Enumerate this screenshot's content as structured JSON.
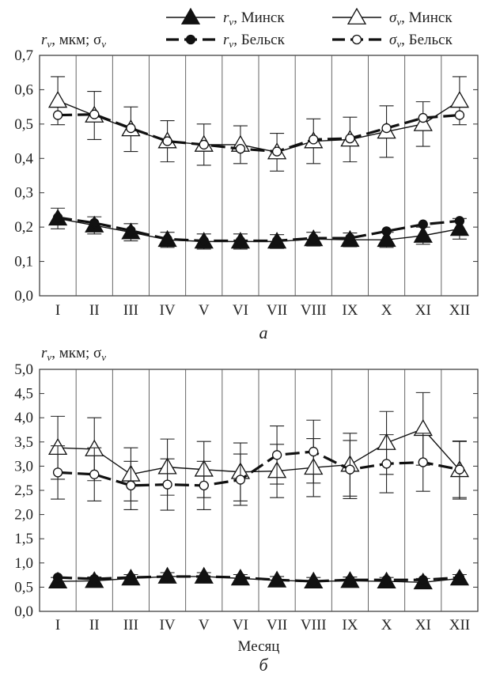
{
  "legend": [
    {
      "var": "r",
      "sub": "v",
      "sep": ", ",
      "city": "Минск",
      "line": "solid",
      "marker": "triangle-filled"
    },
    {
      "var": "σ",
      "sub": "v",
      "sep": ", ",
      "city": "Минск",
      "line": "solid",
      "marker": "triangle-open"
    },
    {
      "var": "r",
      "sub": "v",
      "sep": ", ",
      "city": "Бельск",
      "line": "dashed",
      "marker": "circle-filled"
    },
    {
      "var": "σ",
      "sub": "v",
      "sep": ", ",
      "city": "Бельск",
      "line": "dashed",
      "marker": "circle-open"
    }
  ],
  "chart_data": [
    {
      "type": "line",
      "panel_label": "а",
      "ylabel": {
        "v1": "r",
        "s1": "v",
        "mid": ", мкм; ",
        "v2": "σ",
        "s2": "v"
      },
      "xlabel": "",
      "ylim": [
        0,
        0.7
      ],
      "yticks": [
        "0,0",
        "0,1",
        "0,2",
        "0,3",
        "0,4",
        "0,5",
        "0,6",
        "0,7"
      ],
      "categories": [
        "I",
        "II",
        "III",
        "IV",
        "V",
        "VI",
        "VII",
        "VIII",
        "IX",
        "X",
        "XI",
        "XII"
      ],
      "grid": "vertical",
      "series": [
        {
          "name": "σv, Минск",
          "line": "solid",
          "marker": "triangle-open",
          "values": [
            0.568,
            0.525,
            0.485,
            0.45,
            0.44,
            0.44,
            0.418,
            0.45,
            0.455,
            0.478,
            0.5,
            0.568
          ],
          "err": [
            0.07,
            0.07,
            0.065,
            0.06,
            0.06,
            0.055,
            0.055,
            0.065,
            0.065,
            0.075,
            0.065,
            0.07
          ]
        },
        {
          "name": "σv, Бельск",
          "line": "dashed",
          "marker": "circle-open",
          "values": [
            0.526,
            0.528,
            0.488,
            0.45,
            0.44,
            0.428,
            0.42,
            0.455,
            0.458,
            0.488,
            0.518,
            0.526
          ],
          "err": [
            0.0,
            0.0,
            0.0,
            0.0,
            0.0,
            0.0,
            0.0,
            0.0,
            0.0,
            0.0,
            0.0,
            0.0
          ]
        },
        {
          "name": "rv, Минск",
          "line": "solid",
          "marker": "triangle-filled",
          "values": [
            0.225,
            0.205,
            0.185,
            0.163,
            0.158,
            0.158,
            0.158,
            0.165,
            0.163,
            0.163,
            0.175,
            0.195
          ],
          "err": [
            0.03,
            0.025,
            0.025,
            0.022,
            0.022,
            0.022,
            0.02,
            0.02,
            0.02,
            0.022,
            0.025,
            0.03
          ]
        },
        {
          "name": "rv, Бельск",
          "line": "dashed",
          "marker": "circle-filled",
          "values": [
            0.228,
            0.212,
            0.19,
            0.165,
            0.16,
            0.16,
            0.16,
            0.168,
            0.168,
            0.188,
            0.208,
            0.218
          ],
          "err": [
            0.0,
            0.0,
            0.0,
            0.0,
            0.0,
            0.0,
            0.0,
            0.0,
            0.0,
            0.0,
            0.0,
            0.0
          ]
        }
      ]
    },
    {
      "type": "line",
      "panel_label": "б",
      "ylabel": {
        "v1": "r",
        "s1": "v",
        "mid": ", мкм; ",
        "v2": "σ",
        "s2": "v"
      },
      "xlabel": "Месяц",
      "ylim": [
        0,
        5
      ],
      "yticks": [
        "0,0",
        "0,5",
        "1,0",
        "1,5",
        "2,0",
        "2,5",
        "3,0",
        "3,5",
        "4,0",
        "4,5",
        "5,0"
      ],
      "categories": [
        "I",
        "II",
        "III",
        "IV",
        "V",
        "VI",
        "VII",
        "VIII",
        "IX",
        "X",
        "XI",
        "XII"
      ],
      "grid": "vertical",
      "series": [
        {
          "name": "σv, Минск",
          "line": "solid",
          "marker": "triangle-open",
          "values": [
            3.38,
            3.35,
            2.83,
            2.98,
            2.93,
            2.88,
            2.9,
            2.97,
            3.03,
            3.48,
            3.77,
            2.92
          ],
          "err": [
            0.65,
            0.65,
            0.55,
            0.58,
            0.58,
            0.6,
            0.55,
            0.6,
            0.65,
            0.65,
            0.75,
            0.6
          ]
        },
        {
          "name": "σv, Бельск",
          "line": "dashed",
          "marker": "circle-open",
          "values": [
            2.87,
            2.83,
            2.6,
            2.62,
            2.6,
            2.72,
            3.23,
            3.3,
            2.93,
            3.05,
            3.08,
            2.93
          ],
          "err": [
            0.55,
            0.55,
            0.5,
            0.53,
            0.5,
            0.53,
            0.6,
            0.65,
            0.6,
            0.6,
            0.6,
            0.58
          ]
        },
        {
          "name": "rv, Минск",
          "line": "solid",
          "marker": "triangle-filled",
          "values": [
            0.62,
            0.63,
            0.68,
            0.72,
            0.72,
            0.68,
            0.64,
            0.62,
            0.63,
            0.62,
            0.6,
            0.68
          ],
          "err": [
            0.08,
            0.08,
            0.08,
            0.08,
            0.08,
            0.08,
            0.08,
            0.08,
            0.08,
            0.08,
            0.08,
            0.08
          ]
        },
        {
          "name": "rv, Бельск",
          "line": "dashed",
          "marker": "circle-filled",
          "values": [
            0.7,
            0.67,
            0.7,
            0.72,
            0.72,
            0.7,
            0.65,
            0.62,
            0.65,
            0.65,
            0.65,
            0.7
          ],
          "err": [
            0.0,
            0.0,
            0.0,
            0.0,
            0.0,
            0.0,
            0.0,
            0.0,
            0.0,
            0.0,
            0.0,
            0.0
          ]
        }
      ]
    }
  ]
}
